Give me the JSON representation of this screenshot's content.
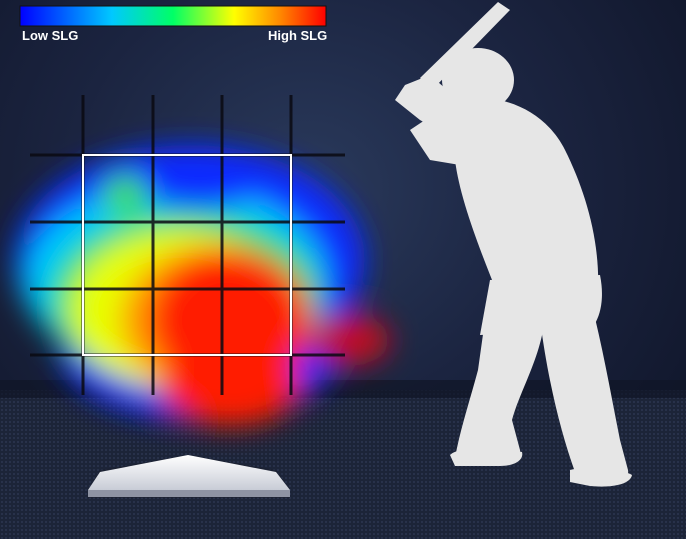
{
  "legend": {
    "low_label": "Low SLG",
    "high_label": "High SLG",
    "colors": [
      "#0000ff",
      "#00c8ff",
      "#00ff66",
      "#ffff00",
      "#ff8800",
      "#ff0000"
    ]
  },
  "chart_data": {
    "type": "heatmap",
    "metric": "SLG",
    "grid_rows": 3,
    "grid_cols": 3,
    "hot_spots": [
      {
        "zone": [
          2,
          1
        ],
        "level": 0.85
      },
      {
        "zone": [
          2,
          2
        ],
        "level": 0.95
      },
      {
        "zone": [
          3,
          1
        ],
        "level": 0.8
      },
      {
        "zone": [
          3,
          2
        ],
        "level": 0.9
      },
      {
        "zone": [
          1,
          1
        ],
        "level": 0.05
      },
      {
        "zone": [
          1,
          2
        ],
        "level": 0.05
      }
    ]
  }
}
